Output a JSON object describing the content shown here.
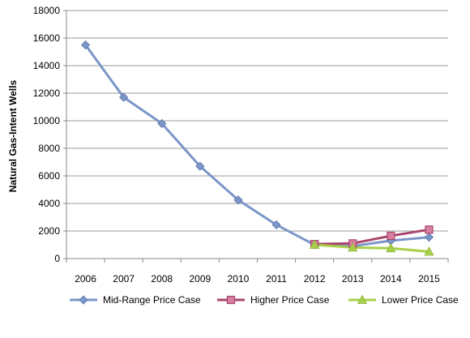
{
  "chart_data": {
    "type": "line",
    "title": "",
    "xlabel": "",
    "ylabel": "Natural Gas-Intent Wells",
    "ylim": [
      0,
      18000
    ],
    "yticks": [
      0,
      2000,
      4000,
      6000,
      8000,
      10000,
      12000,
      14000,
      16000,
      18000
    ],
    "categories": [
      "2006",
      "2007",
      "2008",
      "2009",
      "2010",
      "2011",
      "2012",
      "2013",
      "2014",
      "2015"
    ],
    "grid": true,
    "legend_position": "bottom",
    "series": [
      {
        "name": "Mid-Range Price Case",
        "color": "#7B96C8",
        "marker": "diamond",
        "values": [
          15500,
          11700,
          9800,
          6700,
          4250,
          2450,
          1000,
          900,
          1300,
          1550
        ]
      },
      {
        "name": "Higher Price Case",
        "color": "#A8456C",
        "marker": "square",
        "values": [
          null,
          null,
          null,
          null,
          null,
          null,
          1050,
          1100,
          1650,
          2100
        ]
      },
      {
        "name": "Lower Price Case",
        "color": "#A8D04A",
        "marker": "triangle",
        "values": [
          null,
          null,
          null,
          null,
          null,
          null,
          1000,
          800,
          750,
          500
        ]
      }
    ]
  }
}
